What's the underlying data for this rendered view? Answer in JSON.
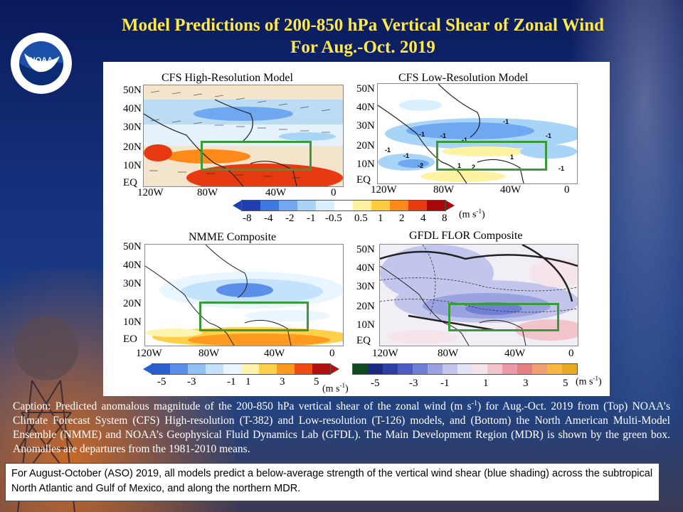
{
  "title": {
    "line1": "Model Predictions of 200-850 hPa Vertical Shear of Zonal Wind",
    "line2": "For Aug.-Oct. 2019"
  },
  "logo": {
    "text": "NOAA",
    "icon": "noaa-logo"
  },
  "panels": {
    "cfs_high": {
      "title": "CFS High-Resolution  Model",
      "lat_labels": [
        "50N",
        "40N",
        "30N",
        "20N",
        "10N",
        "EQ"
      ],
      "lon_labels": [
        "120W",
        "80W",
        "40W",
        "0"
      ]
    },
    "cfs_low": {
      "title": "CFS Low-Resolution  Model",
      "lat_labels": [
        "50N",
        "40N",
        "30N",
        "20N",
        "10N",
        "EQ"
      ],
      "lon_labels": [
        "120W",
        "80W",
        "40W",
        "0"
      ],
      "contour_labels": [
        "-1",
        "-1",
        "-1",
        "-1",
        "-1",
        "-1",
        "-1",
        "-2",
        "1",
        "2",
        "1",
        "-1"
      ]
    },
    "nmme": {
      "title": "NMME  Composite",
      "lat_labels": [
        "50N",
        "40N",
        "30N",
        "20N",
        "10N",
        "EO"
      ],
      "lon_labels": [
        "120W",
        "80W",
        "40W",
        "0"
      ]
    },
    "gfdl": {
      "title": "GFDL FLOR Composite",
      "lat_labels": [
        "50N",
        "40N",
        "30N",
        "20N",
        "10N",
        "EQ"
      ],
      "lon_labels": [
        "120W",
        "80W",
        "40W",
        "0"
      ]
    }
  },
  "colorbars": {
    "top": {
      "ticks": [
        "-8",
        "-4",
        "-2",
        "-1",
        "-0.5",
        "0.5",
        "1",
        "2",
        "4",
        "8"
      ],
      "unit": "(m s",
      "unit_sup": "-1",
      "unit_end": ")"
    },
    "nmme": {
      "ticks": [
        "-5",
        "-3",
        "-1",
        "1",
        "3",
        "5"
      ],
      "unit": "(m s",
      "unit_sup": "-1",
      "unit_end": ")"
    },
    "gfdl": {
      "ticks": [
        "-5",
        "-3",
        "-1",
        "1",
        "3",
        "5"
      ],
      "unit": "(m s",
      "unit_sup": "-1",
      "unit_end": ")"
    }
  },
  "colors": {
    "title": "#ffe94a",
    "mdr_box": "#3a9a3a",
    "top_bar": [
      "#1f3fb0",
      "#3f78e0",
      "#6fa8f0",
      "#a8d4f8",
      "#d8f0ff",
      "#ffffff",
      "#fff2a0",
      "#ffcc40",
      "#ff8a1a",
      "#e83a10",
      "#a80808"
    ],
    "nmme_bar": [
      "#2a5fd0",
      "#5a8ee8",
      "#92bff4",
      "#c4e2fb",
      "#eaf6ff",
      "#fff3b0",
      "#ffd04a",
      "#ff9a1f",
      "#ee4a12",
      "#b01010"
    ],
    "gfdl_bar": [
      "#0f4a20",
      "#1a2a80",
      "#2c3fa6",
      "#4b5cc4",
      "#6f7fd4",
      "#9aa2e0",
      "#c3c6ec",
      "#e4e4f6",
      "#f6e4ec",
      "#f2c4cc",
      "#ec9aa8",
      "#e47f84",
      "#f0a070",
      "#f6b840",
      "#e8a820"
    ]
  },
  "caption": {
    "p1": "Caption: Predicted anomalous magnitude of the 200-850 hPa vertical shear of the zonal wind (m s",
    "p1_sup": "-1",
    "p2": ") for Aug.-Oct. 2019 from (Top) NOAA’s Climate Forecast System (CFS) High-resolution (T-382) and Low-resolution (T-126) models, and (Bottom) the North American Multi-Model Ensemble (NMME) and NOAA’s Geophysical Fluid Dynamics Lab (GFDL). The Main Development Region (MDR) is shown by the green box. Anomalies are departures from the 1981-2010  means."
  },
  "summary": "For August-October (ASO) 2019, all models predict a below-average strength of the vertical wind shear (blue shading) across the subtropical North Atlantic  and Gulf of Mexico, and along the northern MDR."
}
